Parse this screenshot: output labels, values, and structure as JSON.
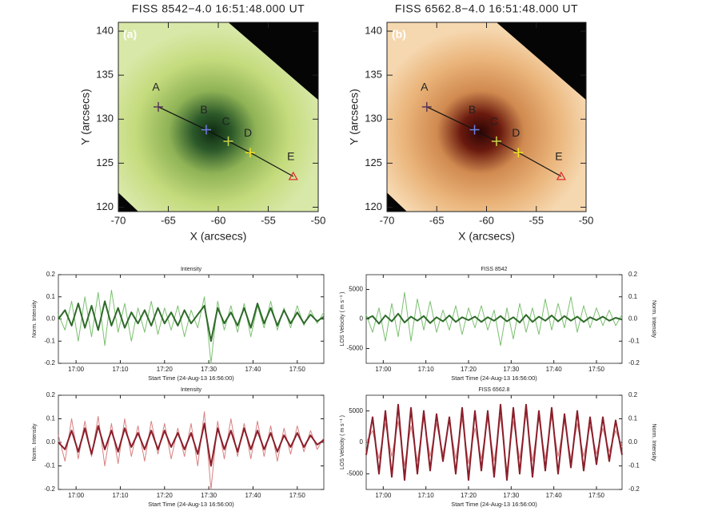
{
  "chart_data": [
    {
      "type": "image",
      "title": "FISS 8542−4.0 16:51:48.000 UT",
      "panel": "(a)",
      "xlabel": "X (arcsecs)",
      "ylabel": "Y (arcsecs)",
      "xlim": [
        -70,
        -50
      ],
      "ylim": [
        119.5,
        141
      ],
      "xticks": [
        -70,
        -65,
        -60,
        -55,
        -50
      ],
      "yticks": [
        120,
        125,
        130,
        135,
        140
      ],
      "labels": [
        "A",
        "B",
        "C",
        "D",
        "E"
      ],
      "x": [
        -66,
        -61.2,
        -59,
        -56.8,
        -52.5
      ],
      "y": [
        131.4,
        128.8,
        127.5,
        126.2,
        123.5
      ],
      "colors": [
        "#5a3a5a",
        "#6f7fe0",
        "#c9d84a",
        "#f0e020",
        "#e03030"
      ],
      "markers": [
        "plus",
        "plus",
        "plus",
        "plus",
        "triangle"
      ]
    },
    {
      "type": "image",
      "title": "FISS 6562.8−4.0 16:51:48.000 UT",
      "panel": "(b)",
      "xlabel": "X (arcsecs)",
      "ylabel": "Y (arcsecs)",
      "xlim": [
        -70,
        -50
      ],
      "ylim": [
        119.5,
        141
      ],
      "xticks": [
        -70,
        -65,
        -60,
        -55,
        -50
      ],
      "yticks": [
        120,
        125,
        130,
        135,
        140
      ],
      "labels": [
        "A",
        "B",
        "C",
        "D",
        "E"
      ],
      "x": [
        -66,
        -61.2,
        -59,
        -56.8,
        -52.5
      ],
      "y": [
        131.4,
        128.8,
        127.5,
        126.2,
        123.5
      ],
      "colors": [
        "#5a3a5a",
        "#6f7fe0",
        "#c9d84a",
        "#f0e020",
        "#e03030"
      ],
      "markers": [
        "plus",
        "plus",
        "plus",
        "plus",
        "triangle"
      ]
    },
    {
      "type": "line",
      "title": "Intensity",
      "xlabel": "Start Time (24-Aug-13 16:56:00)",
      "ylabel": "Norm. Intensity",
      "xlim": [
        0,
        60
      ],
      "xticks": [
        {
          "value": 4,
          "label": "17:00"
        },
        {
          "value": 14,
          "label": "17:10"
        },
        {
          "value": 24,
          "label": "17:20"
        },
        {
          "value": 34,
          "label": "17:30"
        },
        {
          "value": 44,
          "label": "17:40"
        },
        {
          "value": 54,
          "label": "17:50"
        }
      ],
      "ylim": [
        -0.2,
        0.2
      ],
      "yticks": [
        -0.2,
        -0.1,
        {
          "value": 0,
          "label": "0.0"
        },
        0.1,
        0.2
      ],
      "x": [
        0,
        1.5,
        3,
        4.5,
        6,
        7.5,
        9,
        10.5,
        12,
        13.5,
        15,
        16.5,
        18,
        19.5,
        21,
        22.5,
        24,
        25.5,
        27,
        28.5,
        30,
        31.5,
        33,
        34.5,
        36,
        37.5,
        39,
        40.5,
        42,
        43.5,
        45,
        46.5,
        48,
        49.5,
        51,
        52.5,
        54,
        55.5,
        57,
        58.5,
        60
      ],
      "series": [
        {
          "color": "#7cc070",
          "linewidth": 1,
          "values": [
            0.02,
            -0.05,
            0.08,
            -0.1,
            0.1,
            -0.08,
            0.12,
            -0.12,
            0.13,
            -0.06,
            0.07,
            -0.1,
            0.05,
            -0.06,
            0.08,
            -0.07,
            0.05,
            -0.05,
            0.06,
            -0.08,
            0.04,
            -0.04,
            0.1,
            -0.2,
            0.08,
            -0.05,
            0.06,
            -0.06,
            0.07,
            -0.08,
            0.06,
            -0.04,
            0.08,
            -0.05,
            0.05,
            -0.04,
            0.06,
            -0.03,
            0.04,
            -0.02,
            0.03
          ]
        },
        {
          "color": "#2f6a2a",
          "linewidth": 2,
          "values": [
            0.0,
            0.04,
            -0.03,
            0.07,
            -0.04,
            0.06,
            -0.05,
            0.08,
            -0.03,
            0.05,
            -0.04,
            0.03,
            -0.02,
            0.04,
            -0.03,
            0.05,
            -0.02,
            0.03,
            -0.03,
            0.04,
            -0.02,
            0.02,
            0.06,
            -0.1,
            0.05,
            -0.02,
            0.03,
            -0.03,
            0.05,
            -0.04,
            0.07,
            -0.02,
            0.05,
            -0.03,
            0.04,
            -0.02,
            0.03,
            -0.02,
            0.02,
            -0.01,
            0.01
          ]
        }
      ]
    },
    {
      "type": "line",
      "title": "FISS 8542",
      "xlabel": "Start Time (24-Aug-13 16:56:00)",
      "ylabel": "LOS Velocity ( m s⁻¹ )",
      "y2label": "Norm. Intensity",
      "xlim": [
        0,
        60
      ],
      "xticks": [
        {
          "value": 4,
          "label": "17:00"
        },
        {
          "value": 14,
          "label": "17:10"
        },
        {
          "value": 24,
          "label": "17:20"
        },
        {
          "value": 34,
          "label": "17:30"
        },
        {
          "value": 44,
          "label": "17:40"
        },
        {
          "value": 54,
          "label": "17:50"
        }
      ],
      "ylim": [
        -7500,
        7500
      ],
      "yticks": [
        -5000,
        0,
        5000
      ],
      "y2lim": [
        -0.2,
        0.2
      ],
      "y2ticks": [
        -0.2,
        -0.1,
        {
          "value": 0,
          "label": "0.0"
        },
        0.1,
        0.2
      ],
      "x": [
        0,
        1.5,
        3,
        4.5,
        6,
        7.5,
        9,
        10.5,
        12,
        13.5,
        15,
        16.5,
        18,
        19.5,
        21,
        22.5,
        24,
        25.5,
        27,
        28.5,
        30,
        31.5,
        33,
        34.5,
        36,
        37.5,
        39,
        40.5,
        42,
        43.5,
        45,
        46.5,
        48,
        49.5,
        51,
        52.5,
        54,
        55.5,
        57,
        58.5,
        60
      ],
      "series": [
        {
          "color": "#7cc070",
          "linewidth": 1,
          "axis": "y2",
          "values": [
            0.02,
            -0.06,
            0.05,
            -0.1,
            0.07,
            -0.08,
            0.12,
            -0.1,
            0.09,
            -0.05,
            0.08,
            -0.06,
            0.04,
            -0.05,
            0.06,
            -0.07,
            0.05,
            -0.04,
            0.06,
            -0.05,
            0.04,
            -0.12,
            0.05,
            -0.09,
            0.07,
            -0.06,
            0.05,
            -0.07,
            0.09,
            -0.05,
            0.07,
            -0.04,
            0.1,
            -0.06,
            0.06,
            -0.04,
            0.05,
            -0.03,
            0.04,
            -0.03,
            0.02
          ]
        },
        {
          "color": "#2f6a2a",
          "linewidth": 2,
          "values": [
            0,
            500,
            -800,
            600,
            -400,
            900,
            -600,
            400,
            -300,
            500,
            -700,
            300,
            -400,
            600,
            -500,
            300,
            -200,
            400,
            -500,
            300,
            -300,
            500,
            -400,
            300,
            -600,
            700,
            -500,
            400,
            -300,
            600,
            -400,
            500,
            -300,
            400,
            -500,
            300,
            -200,
            400,
            -300,
            200,
            -100
          ]
        }
      ]
    },
    {
      "type": "line",
      "title": "Intensity",
      "xlabel": "Start Time (24-Aug-13 16:56:00)",
      "ylabel": "Norm. Intensity",
      "xlim": [
        0,
        60
      ],
      "xticks": [
        {
          "value": 4,
          "label": "17:00"
        },
        {
          "value": 14,
          "label": "17:10"
        },
        {
          "value": 24,
          "label": "17:20"
        },
        {
          "value": 34,
          "label": "17:30"
        },
        {
          "value": 44,
          "label": "17:40"
        },
        {
          "value": 54,
          "label": "17:50"
        }
      ],
      "ylim": [
        -0.2,
        0.2
      ],
      "yticks": [
        -0.2,
        -0.1,
        {
          "value": 0,
          "label": "0.0"
        },
        0.1,
        0.2
      ],
      "x": [
        0,
        1.5,
        3,
        4.5,
        6,
        7.5,
        9,
        10.5,
        12,
        13.5,
        15,
        16.5,
        18,
        19.5,
        21,
        22.5,
        24,
        25.5,
        27,
        28.5,
        30,
        31.5,
        33,
        34.5,
        36,
        37.5,
        39,
        40.5,
        42,
        43.5,
        45,
        46.5,
        48,
        49.5,
        51,
        52.5,
        54,
        55.5,
        57,
        58.5,
        60
      ],
      "series": [
        {
          "color": "#d98080",
          "linewidth": 1,
          "values": [
            0.03,
            -0.08,
            0.1,
            -0.07,
            0.09,
            -0.06,
            0.11,
            -0.1,
            0.08,
            -0.09,
            0.1,
            -0.06,
            0.07,
            -0.08,
            0.09,
            -0.05,
            0.08,
            -0.07,
            0.06,
            -0.06,
            0.08,
            -0.1,
            0.13,
            -0.2,
            0.09,
            -0.07,
            0.1,
            -0.06,
            0.08,
            -0.07,
            0.09,
            -0.06,
            0.07,
            -0.08,
            0.06,
            -0.05,
            0.07,
            -0.04,
            0.05,
            -0.03,
            0.02
          ]
        },
        {
          "color": "#8a1e2a",
          "linewidth": 2,
          "values": [
            0.0,
            -0.03,
            0.05,
            -0.04,
            0.06,
            -0.05,
            0.07,
            -0.03,
            0.05,
            -0.04,
            0.06,
            -0.02,
            0.04,
            -0.03,
            0.05,
            -0.03,
            0.05,
            -0.02,
            0.04,
            -0.03,
            0.04,
            -0.05,
            0.08,
            -0.1,
            0.06,
            -0.03,
            0.05,
            -0.04,
            0.06,
            -0.03,
            0.05,
            -0.03,
            0.04,
            -0.04,
            0.03,
            -0.02,
            0.04,
            -0.02,
            0.03,
            -0.01,
            0.01
          ]
        }
      ]
    },
    {
      "type": "line",
      "title": "FISS 6562.8",
      "xlabel": "Start Time (24-Aug-13 16:56:00)",
      "ylabel": "LOS Velocity ( m s⁻¹ )",
      "y2label": "Norm. Intensity",
      "xlim": [
        0,
        60
      ],
      "xticks": [
        {
          "value": 4,
          "label": "17:00"
        },
        {
          "value": 14,
          "label": "17:10"
        },
        {
          "value": 24,
          "label": "17:20"
        },
        {
          "value": 34,
          "label": "17:30"
        },
        {
          "value": 44,
          "label": "17:40"
        },
        {
          "value": 54,
          "label": "17:50"
        }
      ],
      "ylim": [
        -7500,
        7500
      ],
      "yticks": [
        -5000,
        0,
        5000
      ],
      "y2lim": [
        -0.2,
        0.2
      ],
      "y2ticks": [
        -0.2,
        -0.1,
        {
          "value": 0,
          "label": "0.0"
        },
        0.1,
        0.2
      ],
      "x": [
        0,
        1.5,
        3,
        4.5,
        6,
        7.5,
        9,
        10.5,
        12,
        13.5,
        15,
        16.5,
        18,
        19.5,
        21,
        22.5,
        24,
        25.5,
        27,
        28.5,
        30,
        31.5,
        33,
        34.5,
        36,
        37.5,
        39,
        40.5,
        42,
        43.5,
        45,
        46.5,
        48,
        49.5,
        51,
        52.5,
        54,
        55.5,
        57,
        58.5,
        60
      ],
      "series": [
        {
          "color": "#d98080",
          "linewidth": 1,
          "axis": "y2",
          "values": [
            0.0,
            0.05,
            -0.07,
            0.08,
            -0.06,
            0.09,
            -0.1,
            0.07,
            -0.08,
            0.1,
            -0.06,
            0.08,
            -0.05,
            0.09,
            -0.07,
            0.1,
            -0.09,
            0.06,
            -0.07,
            0.1,
            -0.08,
            0.11,
            -0.12,
            0.09,
            -0.07,
            0.12,
            -0.08,
            0.1,
            -0.07,
            0.11,
            -0.06,
            0.09,
            -0.07,
            0.08,
            -0.06,
            0.07,
            -0.05,
            0.06,
            -0.04,
            0.05,
            -0.02
          ]
        },
        {
          "color": "#8a1e2a",
          "linewidth": 2,
          "values": [
            -2000,
            4000,
            -5000,
            5000,
            -5500,
            6000,
            -6000,
            5500,
            -5000,
            5000,
            -4500,
            4500,
            -3000,
            4000,
            -5000,
            5500,
            -6000,
            5000,
            -4500,
            5000,
            -5500,
            6000,
            -6000,
            5500,
            -5000,
            6000,
            -5500,
            5000,
            -4500,
            5500,
            -5000,
            4500,
            -4000,
            5000,
            -4500,
            4000,
            -3500,
            4000,
            -3000,
            3500,
            -2000
          ]
        }
      ]
    }
  ]
}
